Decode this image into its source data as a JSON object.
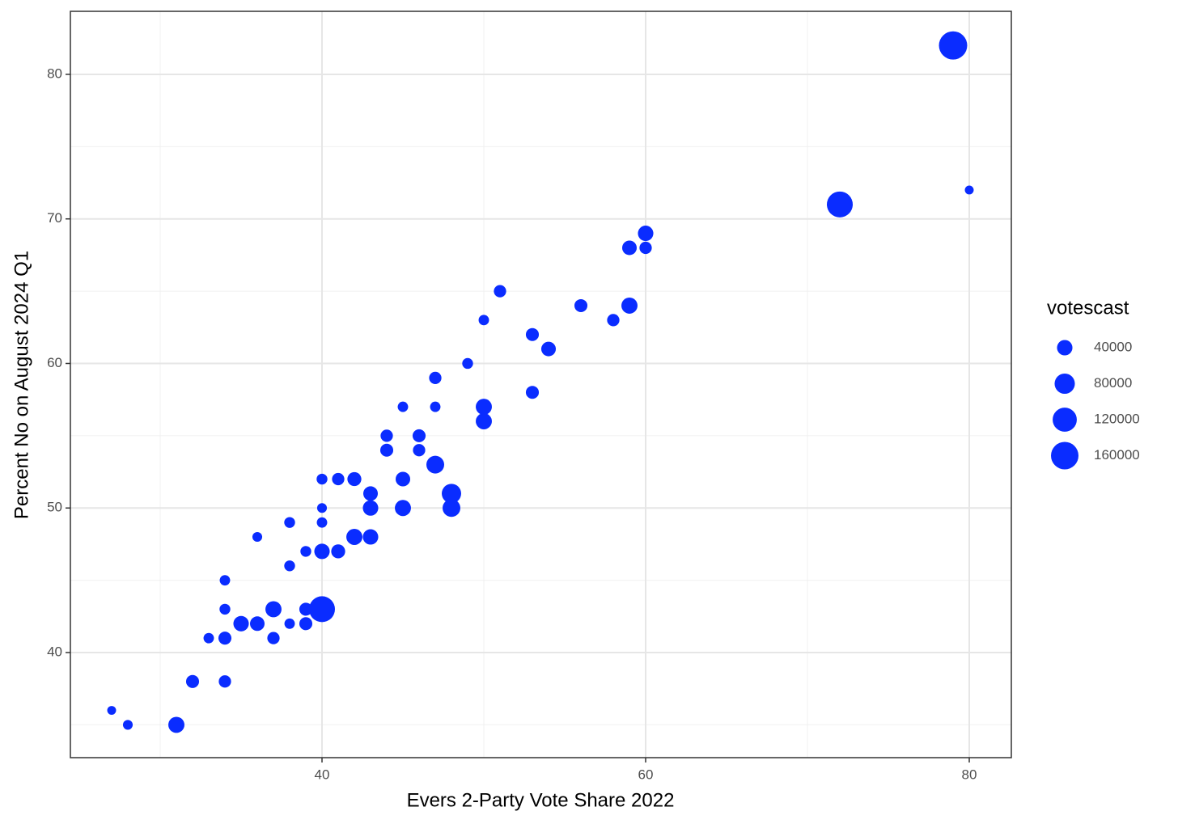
{
  "chart_data": {
    "type": "scatter",
    "xlabel": "Evers 2-Party Vote Share 2022",
    "ylabel": "Percent No on August 2024 Q1",
    "color": "#0a2cff",
    "x": [
      27,
      28,
      31,
      32,
      33,
      34,
      34,
      34,
      34,
      35,
      36,
      36,
      37,
      37,
      38,
      38,
      38,
      39,
      39,
      39,
      40,
      40,
      40,
      40,
      40,
      41,
      41,
      42,
      42,
      43,
      43,
      43,
      44,
      44,
      45,
      45,
      45,
      46,
      46,
      47,
      47,
      47,
      48,
      48,
      49,
      50,
      50,
      50,
      51,
      53,
      53,
      54,
      56,
      58,
      59,
      59,
      60,
      60,
      72,
      79,
      80
    ],
    "y": [
      36,
      35,
      35,
      38,
      41,
      45,
      43,
      41,
      38,
      42,
      48,
      42,
      43,
      41,
      49,
      46,
      42,
      47,
      43,
      42,
      52,
      50,
      49,
      47,
      43,
      52,
      47,
      52,
      48,
      51,
      50,
      48,
      55,
      54,
      57,
      52,
      50,
      55,
      54,
      59,
      57,
      53,
      51,
      50,
      60,
      63,
      57,
      56,
      65,
      62,
      58,
      61,
      64,
      63,
      68,
      64,
      69,
      68,
      71,
      82,
      72
    ],
    "sizes": [
      3000,
      7000,
      45000,
      24000,
      10000,
      10000,
      12000,
      24000,
      20000,
      40000,
      7000,
      34000,
      45000,
      20000,
      12000,
      12000,
      10000,
      12000,
      24000,
      24000,
      12000,
      7000,
      10000,
      40000,
      140000,
      20000,
      30000,
      30000,
      45000,
      34000,
      40000,
      40000,
      20000,
      24000,
      10000,
      34000,
      45000,
      24000,
      20000,
      20000,
      10000,
      58000,
      72000,
      58000,
      12000,
      10000,
      45000,
      45000,
      20000,
      24000,
      24000,
      34000,
      24000,
      20000,
      34000,
      45000,
      40000,
      20000,
      140000,
      170000,
      3000
    ],
    "xlim": [
      24.45,
      82.6
    ],
    "ylim": [
      32.73,
      84.36
    ],
    "xticks": [
      40,
      60,
      80
    ],
    "yticks": [
      40,
      50,
      60,
      70,
      80
    ],
    "xminorticks": [
      30,
      50,
      70
    ],
    "yminorticks": [
      35,
      45,
      55,
      65,
      75
    ],
    "grid": true,
    "legend": {
      "title": "votescast",
      "sizes": [
        40000,
        80000,
        120000,
        160000
      ]
    }
  }
}
